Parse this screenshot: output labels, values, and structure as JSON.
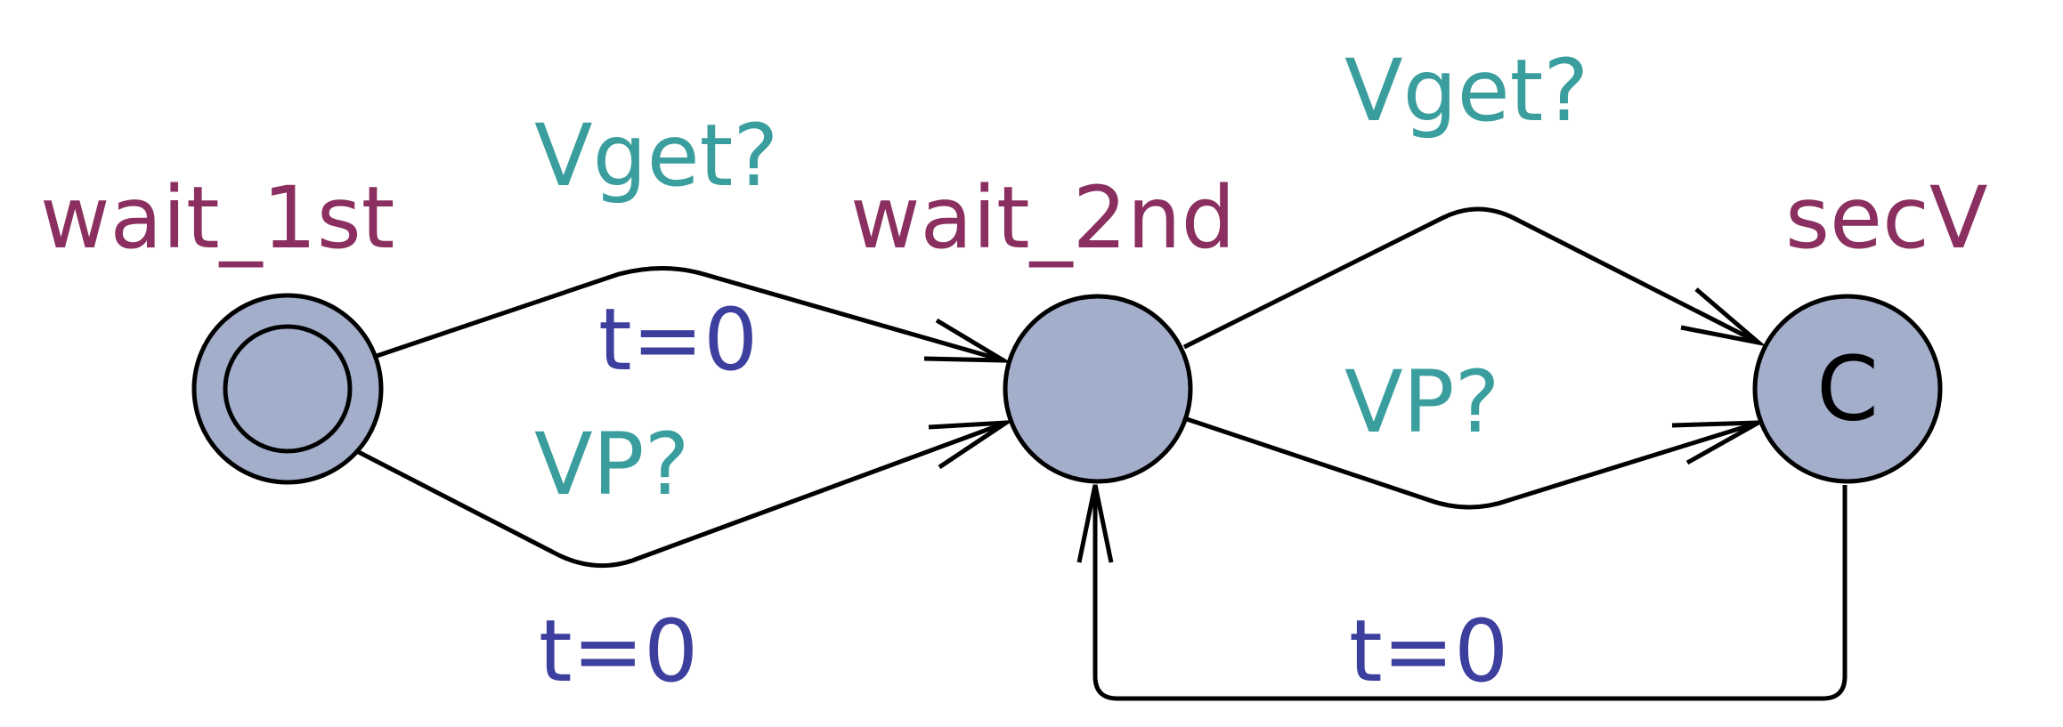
{
  "colors": {
    "location_name": "#8a2f5f",
    "sync": "#3b9e9e",
    "update": "#3c3f9e",
    "state_fill": "#a3aecb",
    "stroke": "#000000"
  },
  "locations": [
    {
      "id": "wait_1st",
      "name": "wait_1st",
      "initial": true,
      "committed": false
    },
    {
      "id": "wait_2nd",
      "name": "wait_2nd",
      "initial": false,
      "committed": false
    },
    {
      "id": "secV",
      "name": "secV",
      "initial": false,
      "committed": true,
      "marker": "C"
    }
  ],
  "edges": [
    {
      "id": "e1",
      "from": "wait_1st",
      "to": "wait_2nd",
      "sync": "Vget?",
      "update": "t=0"
    },
    {
      "id": "e2",
      "from": "wait_1st",
      "to": "wait_2nd",
      "sync": "VP?",
      "update": "t=0"
    },
    {
      "id": "e3",
      "from": "wait_2nd",
      "to": "secV",
      "sync": "Vget?",
      "update": ""
    },
    {
      "id": "e4",
      "from": "wait_2nd",
      "to": "secV",
      "sync": "VP?",
      "update": ""
    },
    {
      "id": "e5",
      "from": "secV",
      "to": "wait_2nd",
      "sync": "",
      "update": "t=0"
    }
  ]
}
